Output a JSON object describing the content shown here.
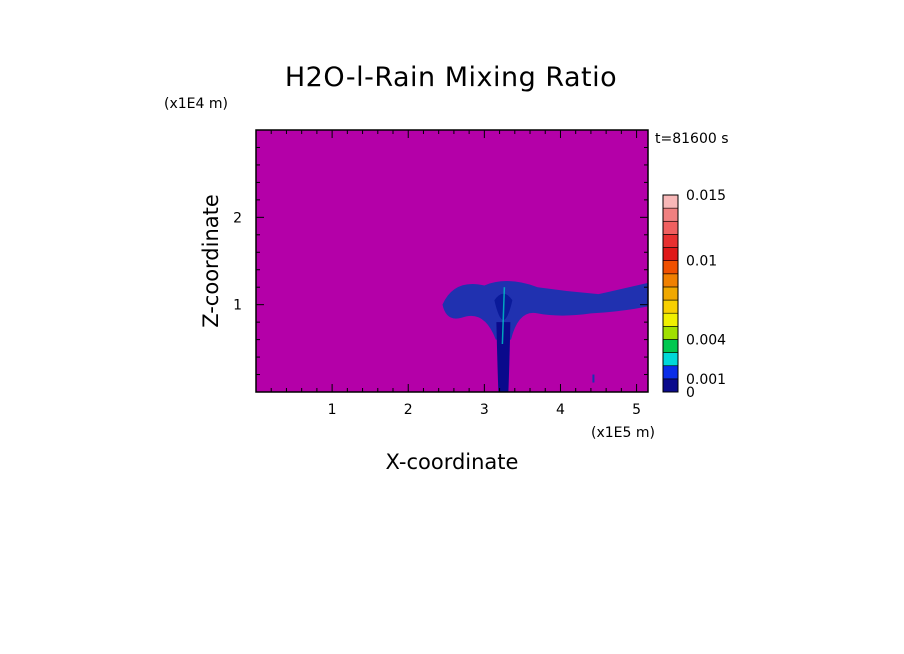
{
  "chart_data": {
    "type": "heatmap",
    "title": "H2O-l-Rain Mixing Ratio",
    "time_label": "t=81600 s",
    "xlabel": "X-coordinate",
    "ylabel": "Z-coordinate",
    "x_scale_label": "(x1E5 m)",
    "y_scale_label": "(x1E4 m)",
    "x_ticks": [
      1,
      2,
      3,
      4,
      5
    ],
    "y_ticks": [
      1,
      2
    ],
    "xlim": [
      0,
      5.15
    ],
    "ylim": [
      0,
      3.0
    ],
    "colorbar": {
      "levels": [
        0,
        0.001,
        0.002,
        0.003,
        0.004,
        0.005,
        0.006,
        0.007,
        0.008,
        0.009,
        0.01,
        0.011,
        0.012,
        0.013,
        0.014,
        0.015
      ],
      "labels": [
        {
          "value": 0.015,
          "text": "0.015"
        },
        {
          "value": 0.01,
          "text": "0.01"
        },
        {
          "value": 0.004,
          "text": "0.004"
        },
        {
          "value": 0.001,
          "text": "0.001"
        },
        {
          "value": 0,
          "text": "0"
        }
      ],
      "colors": [
        "#0a0a8c",
        "#0a2ee8",
        "#00d8d8",
        "#00c850",
        "#a0e000",
        "#f0f000",
        "#f8d000",
        "#f0a800",
        "#f08000",
        "#f05000",
        "#e01818",
        "#e83030",
        "#f06060",
        "#f08080",
        "#f8b8b8"
      ]
    },
    "background_value_color": "#b400a8",
    "features": {
      "anvil_cloud_color": "#1834b0",
      "core_color": "#0a0a8c",
      "column_x_center": 3.25
    }
  }
}
